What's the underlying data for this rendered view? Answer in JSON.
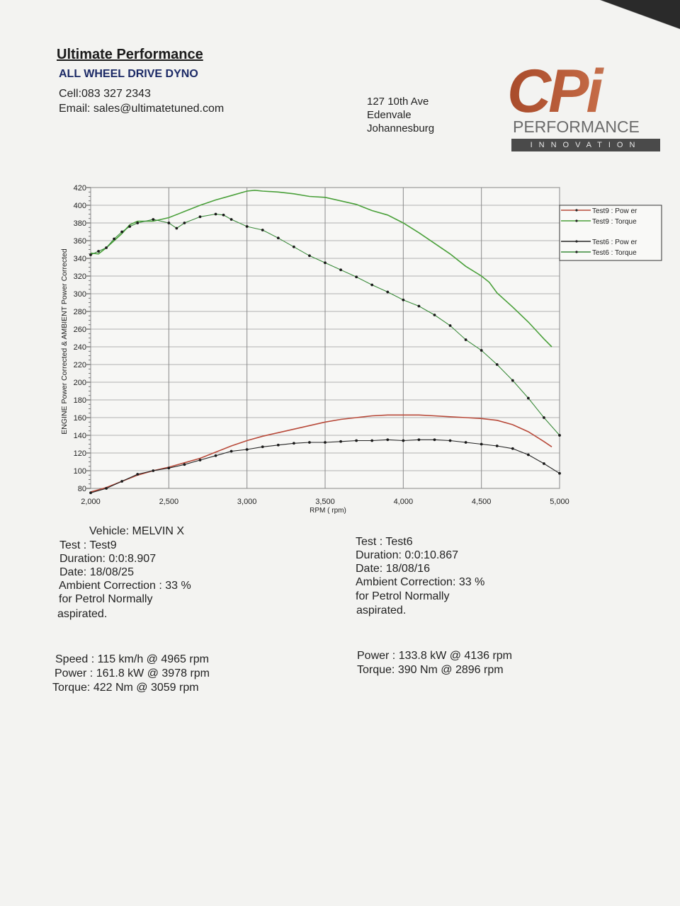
{
  "header": {
    "title": "Ultimate Performance",
    "subtitle": "ALL WHEEL DRIVE DYNO",
    "cell": "Cell:083 327 2343",
    "email": "Email: sales@ultimatetuned.com",
    "address": [
      "127 10th Ave",
      "Edenvale",
      "Johannesburg"
    ]
  },
  "logo": {
    "mark": "CPi",
    "line1": "PERFORMANCE",
    "line2": "INNOVATION",
    "colors": {
      "mark": "#b8512f",
      "band": "#4a4a4a"
    }
  },
  "chart_data": {
    "type": "line",
    "title": "",
    "xlabel": "RPM ( rpm)",
    "ylabel": "ENGINE Power Corrected & AMBIENT Power Corrected",
    "xlim": [
      2000,
      5000
    ],
    "ylim": [
      80,
      420
    ],
    "x_ticks": [
      "2,000",
      "2,500",
      "3,000",
      "3,500",
      "4,000",
      "4,500",
      "5,000"
    ],
    "x_tick_values": [
      2000,
      2500,
      3000,
      3500,
      4000,
      4500,
      5000
    ],
    "y_ticks": [
      80,
      100,
      120,
      140,
      160,
      180,
      200,
      220,
      240,
      260,
      280,
      300,
      320,
      340,
      360,
      380,
      400,
      420
    ],
    "grid": true,
    "legend_position": "right",
    "series": [
      {
        "name": "Test9 : Pow er",
        "color": "#b84a3a",
        "markers": false,
        "x": [
          2000,
          2100,
          2200,
          2300,
          2400,
          2500,
          2600,
          2700,
          2800,
          2900,
          3000,
          3100,
          3200,
          3300,
          3400,
          3500,
          3600,
          3700,
          3800,
          3900,
          4000,
          4100,
          4200,
          4300,
          4400,
          4500,
          4600,
          4700,
          4800,
          4900,
          4950
        ],
        "y": [
          76,
          81,
          88,
          95,
          100,
          104,
          109,
          114,
          121,
          128,
          134,
          139,
          143,
          147,
          151,
          155,
          158,
          160,
          162,
          163,
          163,
          163,
          162,
          161,
          160,
          159,
          157,
          152,
          144,
          133,
          127
        ]
      },
      {
        "name": "Test9 : Torque",
        "color": "#4aa03a",
        "markers": false,
        "x": [
          2000,
          2050,
          2100,
          2200,
          2250,
          2300,
          2400,
          2500,
          2600,
          2700,
          2800,
          2900,
          3000,
          3050,
          3100,
          3200,
          3300,
          3400,
          3500,
          3600,
          3700,
          3800,
          3900,
          4000,
          4100,
          4200,
          4300,
          4400,
          4500,
          4550,
          4600,
          4700,
          4800,
          4900,
          4950
        ],
        "y": [
          346,
          345,
          352,
          368,
          378,
          382,
          382,
          386,
          393,
          400,
          406,
          411,
          416,
          417,
          416,
          415,
          413,
          410,
          409,
          405,
          401,
          394,
          389,
          380,
          369,
          357,
          345,
          331,
          320,
          313,
          301,
          285,
          268,
          249,
          240
        ]
      },
      {
        "name": "Test6 : Pow er",
        "color": "#222222",
        "markers": true,
        "x": [
          2000,
          2100,
          2200,
          2300,
          2400,
          2500,
          2600,
          2700,
          2800,
          2900,
          3000,
          3100,
          3200,
          3300,
          3400,
          3500,
          3600,
          3700,
          3800,
          3900,
          4000,
          4100,
          4200,
          4300,
          4400,
          4500,
          4600,
          4700,
          4800,
          4900,
          5000
        ],
        "y": [
          75,
          80,
          88,
          96,
          100,
          103,
          107,
          112,
          117,
          122,
          124,
          127,
          129,
          131,
          132,
          132,
          133,
          134,
          134,
          135,
          134,
          135,
          135,
          134,
          132,
          130,
          128,
          125,
          118,
          108,
          97
        ]
      },
      {
        "name": "Test6 : Torque",
        "color": "#3a8a3a",
        "markers": true,
        "x": [
          2000,
          2050,
          2100,
          2150,
          2200,
          2250,
          2300,
          2400,
          2500,
          2550,
          2600,
          2700,
          2800,
          2850,
          2900,
          3000,
          3100,
          3200,
          3300,
          3400,
          3500,
          3600,
          3700,
          3800,
          3900,
          4000,
          4100,
          4200,
          4300,
          4400,
          4500,
          4600,
          4700,
          4800,
          4900,
          5000
        ],
        "y": [
          344,
          348,
          352,
          362,
          370,
          376,
          380,
          384,
          380,
          374,
          380,
          387,
          390,
          389,
          384,
          376,
          372,
          363,
          353,
          343,
          335,
          327,
          319,
          310,
          302,
          293,
          286,
          276,
          264,
          248,
          236,
          220,
          202,
          182,
          160,
          140
        ]
      }
    ]
  },
  "info_left": {
    "vehicle": "Vehicle: MELVIN X",
    "test": "Test    : Test9",
    "duration": "Duration: 0:0:8.907",
    "date": "Date: 18/08/25",
    "ambient": "Ambient Correction : 33 %",
    "fuel": " for Petrol Normally",
    "aspirated": "aspirated.",
    "speed": "Speed : 115 km/h @ 4965 rpm",
    "power": "Power : 161.8 kW @ 3978 rpm",
    "torque": "Torque: 422 Nm @ 3059 rpm"
  },
  "info_right": {
    "test": "Test    : Test6",
    "duration": "Duration: 0:0:10.867",
    "date": "Date: 18/08/16",
    "ambient": "Ambient Correction: 33 %",
    "fuel": " for Petrol Normally",
    "aspirated": "aspirated.",
    "power": "Power : 133.8 kW @ 4136 rpm",
    "torque": "Torque: 390 Nm @ 2896 rpm"
  }
}
